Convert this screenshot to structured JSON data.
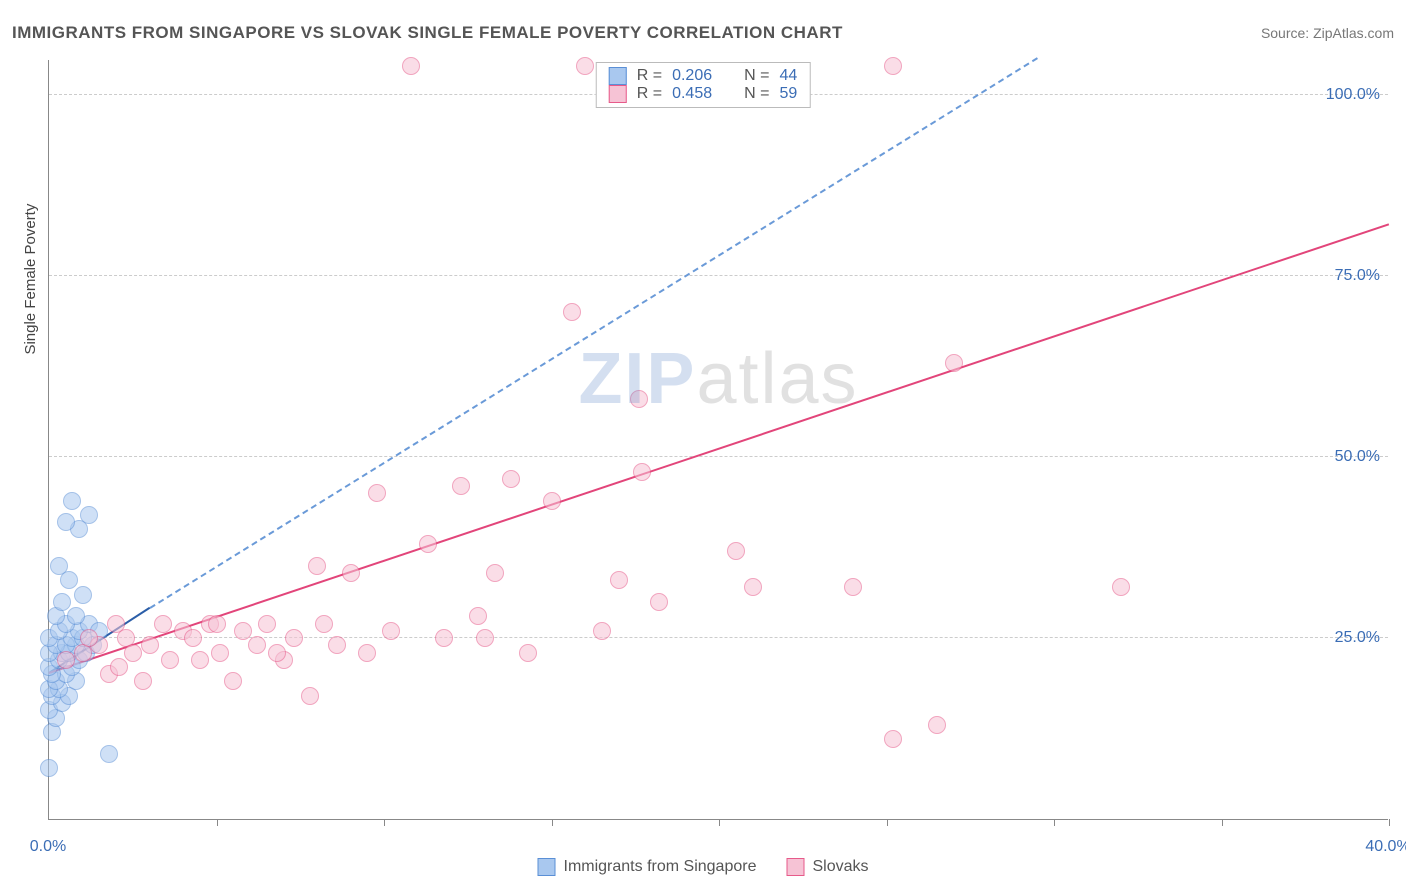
{
  "title": "IMMIGRANTS FROM SINGAPORE VS SLOVAK SINGLE FEMALE POVERTY CORRELATION CHART",
  "source": "Source: ZipAtlas.com",
  "yaxis_label": "Single Female Poverty",
  "watermark": {
    "part1": "ZIP",
    "part2": "atlas"
  },
  "chart": {
    "type": "scatter",
    "xlim": [
      0,
      40
    ],
    "ylim": [
      0,
      105
    ],
    "x_ticks_minor": [
      5,
      10,
      15,
      20,
      25,
      30,
      35,
      40
    ],
    "x_ticks_labeled": [
      {
        "v": 0,
        "label": "0.0%"
      },
      {
        "v": 40,
        "label": "40.0%"
      }
    ],
    "y_ticks": [
      {
        "v": 25,
        "label": "25.0%"
      },
      {
        "v": 50,
        "label": "50.0%"
      },
      {
        "v": 75,
        "label": "75.0%"
      },
      {
        "v": 100,
        "label": "100.0%"
      }
    ],
    "background_color": "#ffffff",
    "grid_color": "#cccccc",
    "axis_color": "#888888",
    "tick_label_color": "#3b6db5",
    "point_radius": 9,
    "point_opacity": 0.55
  },
  "series": [
    {
      "name": "Immigrants from Singapore",
      "fill": "#a9c8ef",
      "stroke": "#5a8fd6",
      "r": 0.206,
      "n": 44,
      "trend": {
        "x1": 0,
        "y1": 20,
        "x2": 3.0,
        "y2": 29,
        "style": "solid",
        "color": "#2b5ea8",
        "width": 2.5
      },
      "trend_ext": {
        "x1": 3.0,
        "y1": 29,
        "x2": 29.5,
        "y2": 105,
        "style": "dashed",
        "color": "#6a9ad8",
        "width": 2
      },
      "points": [
        [
          0.0,
          7
        ],
        [
          0.1,
          12
        ],
        [
          0.2,
          14
        ],
        [
          0.0,
          15
        ],
        [
          0.4,
          16
        ],
        [
          0.1,
          17
        ],
        [
          0.6,
          17
        ],
        [
          0.3,
          18
        ],
        [
          0.0,
          18
        ],
        [
          0.8,
          19
        ],
        [
          0.2,
          19
        ],
        [
          0.5,
          20
        ],
        [
          0.1,
          20
        ],
        [
          0.0,
          21
        ],
        [
          0.7,
          21
        ],
        [
          0.3,
          22
        ],
        [
          0.9,
          22
        ],
        [
          0.4,
          23
        ],
        [
          0.0,
          23
        ],
        [
          0.6,
          23
        ],
        [
          1.1,
          23
        ],
        [
          0.2,
          24
        ],
        [
          0.8,
          24
        ],
        [
          0.5,
          24
        ],
        [
          1.3,
          24
        ],
        [
          0.0,
          25
        ],
        [
          0.7,
          25
        ],
        [
          1.0,
          25
        ],
        [
          0.3,
          26
        ],
        [
          0.9,
          26
        ],
        [
          0.5,
          27
        ],
        [
          1.2,
          27
        ],
        [
          0.2,
          28
        ],
        [
          0.8,
          28
        ],
        [
          0.4,
          30
        ],
        [
          1.0,
          31
        ],
        [
          0.6,
          33
        ],
        [
          1.5,
          26
        ],
        [
          0.3,
          35
        ],
        [
          0.9,
          40
        ],
        [
          0.5,
          41
        ],
        [
          1.2,
          42
        ],
        [
          0.7,
          44
        ],
        [
          1.8,
          9
        ]
      ]
    },
    {
      "name": "Slovaks",
      "fill": "#f6c3d5",
      "stroke": "#e75a8a",
      "r": 0.458,
      "n": 59,
      "trend": {
        "x1": 0,
        "y1": 20,
        "x2": 40,
        "y2": 82,
        "style": "solid",
        "color": "#e2457a",
        "width": 2.5
      },
      "points": [
        [
          0.5,
          22
        ],
        [
          1.0,
          23
        ],
        [
          1.5,
          24
        ],
        [
          1.8,
          20
        ],
        [
          2.0,
          27
        ],
        [
          2.3,
          25
        ],
        [
          2.5,
          23
        ],
        [
          2.8,
          19
        ],
        [
          3.0,
          24
        ],
        [
          3.4,
          27
        ],
        [
          3.6,
          22
        ],
        [
          4.0,
          26
        ],
        [
          4.3,
          25
        ],
        [
          4.5,
          22
        ],
        [
          4.8,
          27
        ],
        [
          5.1,
          23
        ],
        [
          5.5,
          19
        ],
        [
          5.8,
          26
        ],
        [
          6.2,
          24
        ],
        [
          6.5,
          27
        ],
        [
          7.0,
          22
        ],
        [
          7.3,
          25
        ],
        [
          7.8,
          17
        ],
        [
          8.2,
          27
        ],
        [
          8.6,
          24
        ],
        [
          9.0,
          34
        ],
        [
          9.5,
          23
        ],
        [
          9.8,
          45
        ],
        [
          10.2,
          26
        ],
        [
          10.8,
          104
        ],
        [
          11.3,
          38
        ],
        [
          11.8,
          25
        ],
        [
          12.3,
          46
        ],
        [
          12.8,
          28
        ],
        [
          13.3,
          34
        ],
        [
          13.8,
          47
        ],
        [
          14.3,
          23
        ],
        [
          15.0,
          44
        ],
        [
          15.6,
          70
        ],
        [
          16.0,
          104
        ],
        [
          16.5,
          26
        ],
        [
          17.0,
          33
        ],
        [
          17.6,
          58
        ],
        [
          17.7,
          48
        ],
        [
          18.2,
          30
        ],
        [
          20.5,
          37
        ],
        [
          21.0,
          32
        ],
        [
          25.2,
          104
        ],
        [
          27.0,
          63
        ],
        [
          24.0,
          32
        ],
        [
          32.0,
          32
        ],
        [
          26.5,
          13
        ],
        [
          25.2,
          11
        ],
        [
          1.2,
          25
        ],
        [
          2.1,
          21
        ],
        [
          5.0,
          27
        ],
        [
          6.8,
          23
        ],
        [
          8.0,
          35
        ],
        [
          13.0,
          25
        ]
      ]
    }
  ],
  "stats_box": {
    "rows": [
      {
        "swatch_fill": "#a9c8ef",
        "swatch_stroke": "#5a8fd6",
        "r_label": "R =",
        "r": "0.206",
        "n_label": "N =",
        "n": "44"
      },
      {
        "swatch_fill": "#f6c3d5",
        "swatch_stroke": "#e75a8a",
        "r_label": "R =",
        "r": "0.458",
        "n_label": "N =",
        "n": "59"
      }
    ]
  },
  "legend": [
    {
      "swatch_fill": "#a9c8ef",
      "swatch_stroke": "#5a8fd6",
      "label": "Immigrants from Singapore"
    },
    {
      "swatch_fill": "#f6c3d5",
      "swatch_stroke": "#e75a8a",
      "label": "Slovaks"
    }
  ]
}
